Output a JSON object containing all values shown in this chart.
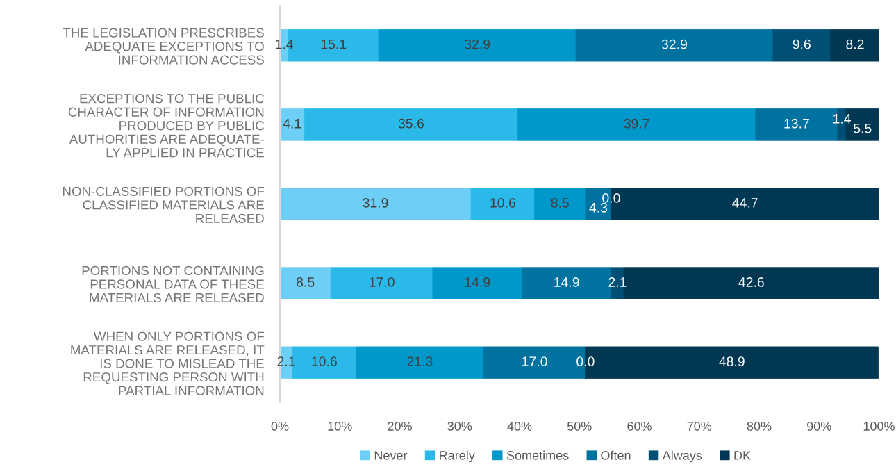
{
  "chart_data": {
    "type": "bar",
    "orientation": "horizontal",
    "stacked": true,
    "categories": [
      "THE LEGISLATION PRESCRIBES\nADEQUATE EXCEPTIONS TO\nINFORMATION ACCESS",
      "EXCEPTIONS TO THE PUBLIC\nCHARACTER OF INFORMATION\nPRODUCED BY PUBLIC\nAUTHORITIES ARE ADEQUATE-\nLY APPLIED IN PRACTICE",
      "NON-CLASSIFIED PORTIONS OF\nCLASSIFIED MATERIALS ARE\nRELEASED",
      "PORTIONS NOT CONTAINING\nPERSONAL DATA OF THESE\nMATERIALS ARE RELEASED",
      "WHEN ONLY PORTIONS OF\nMATERIALS ARE RELEASED, IT\nIS DONE TO MISLEAD THE\nREQUESTING PERSON WITH\nPARTIAL INFORMATION"
    ],
    "series": [
      {
        "name": "Never",
        "color": "#6dcff6",
        "values": [
          1.4,
          4.1,
          31.9,
          8.5,
          2.1
        ],
        "value_labels": [
          "1.4",
          "4.1",
          "31.9",
          "8.5",
          "2.1"
        ]
      },
      {
        "name": "Rarely",
        "color": "#2bb9e9",
        "values": [
          15.1,
          35.6,
          10.6,
          17.0,
          10.6
        ],
        "value_labels": [
          "15.1",
          "35.6",
          "10.6",
          "17.0",
          "10.6"
        ]
      },
      {
        "name": "Sometimes",
        "color": "#0097cb",
        "values": [
          32.9,
          39.7,
          8.5,
          14.9,
          21.3
        ],
        "value_labels": [
          "32.9",
          "39.7",
          "8.5",
          "14.9",
          "21.3"
        ]
      },
      {
        "name": "Often",
        "color": "#0072a0",
        "values": [
          32.9,
          13.7,
          4.3,
          14.9,
          17.0
        ],
        "value_labels": [
          "32.9",
          "13.7",
          "4.3",
          "14.9",
          "17.0"
        ]
      },
      {
        "name": "Always",
        "color": "#004f75",
        "values": [
          9.6,
          1.4,
          0.0,
          2.1,
          0.0
        ],
        "value_labels": [
          "9.6",
          "1.4",
          "0.0",
          "2.1",
          "0.0"
        ]
      },
      {
        "name": "DK",
        "color": "#003752",
        "values": [
          8.2,
          5.5,
          44.7,
          42.6,
          48.9
        ],
        "value_labels": [
          "8.2",
          "5.5",
          "44.7",
          "42.6",
          "48.9"
        ]
      }
    ],
    "xlim": [
      0,
      100
    ],
    "xticks": [
      {
        "value": 0,
        "label": "0%"
      },
      {
        "value": 10,
        "label": "10%"
      },
      {
        "value": 20,
        "label": "20%"
      },
      {
        "value": 30,
        "label": "30%"
      },
      {
        "value": 40,
        "label": "40%"
      },
      {
        "value": 50,
        "label": "50%"
      },
      {
        "value": 60,
        "label": "60%"
      },
      {
        "value": 70,
        "label": "70%"
      },
      {
        "value": 80,
        "label": "80%"
      },
      {
        "value": 90,
        "label": "90%"
      },
      {
        "value": 100,
        "label": "100%"
      }
    ],
    "legend": "bottom",
    "grid": false
  }
}
